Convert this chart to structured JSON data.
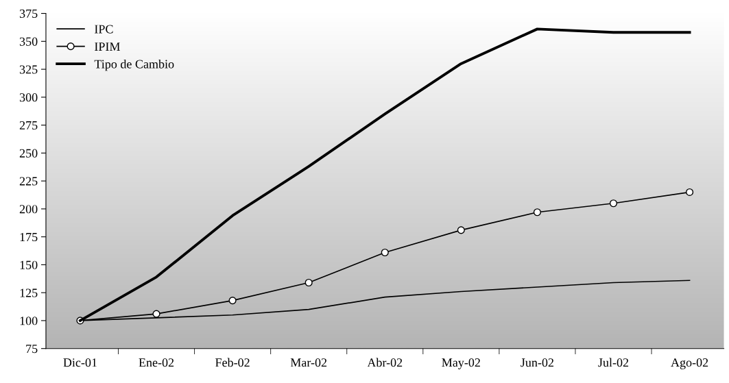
{
  "chart_data": {
    "type": "line",
    "categories": [
      "Dic-01",
      "Ene-02",
      "Feb-02",
      "Mar-02",
      "Abr-02",
      "May-02",
      "Jun-02",
      "Jul-02",
      "Ago-02"
    ],
    "series": [
      {
        "name": "IPC",
        "color": "#000000",
        "marker": "none",
        "values": [
          100,
          102.5,
          105,
          110,
          121,
          126,
          130,
          134,
          136
        ]
      },
      {
        "name": "IPIM",
        "color": "#000000",
        "marker": "circle",
        "values": [
          100,
          106,
          118,
          134,
          161,
          181,
          197,
          205,
          215
        ]
      },
      {
        "name": "Tipo de Cambio",
        "color": "#000000",
        "marker": "none",
        "values": [
          100,
          139,
          194,
          238,
          285,
          330,
          361,
          358,
          358
        ]
      }
    ],
    "ylim": [
      75,
      375
    ],
    "yticks": [
      75,
      100,
      125,
      150,
      175,
      200,
      225,
      250,
      275,
      300,
      325,
      350,
      375
    ],
    "grid": false,
    "legend": "top left"
  }
}
